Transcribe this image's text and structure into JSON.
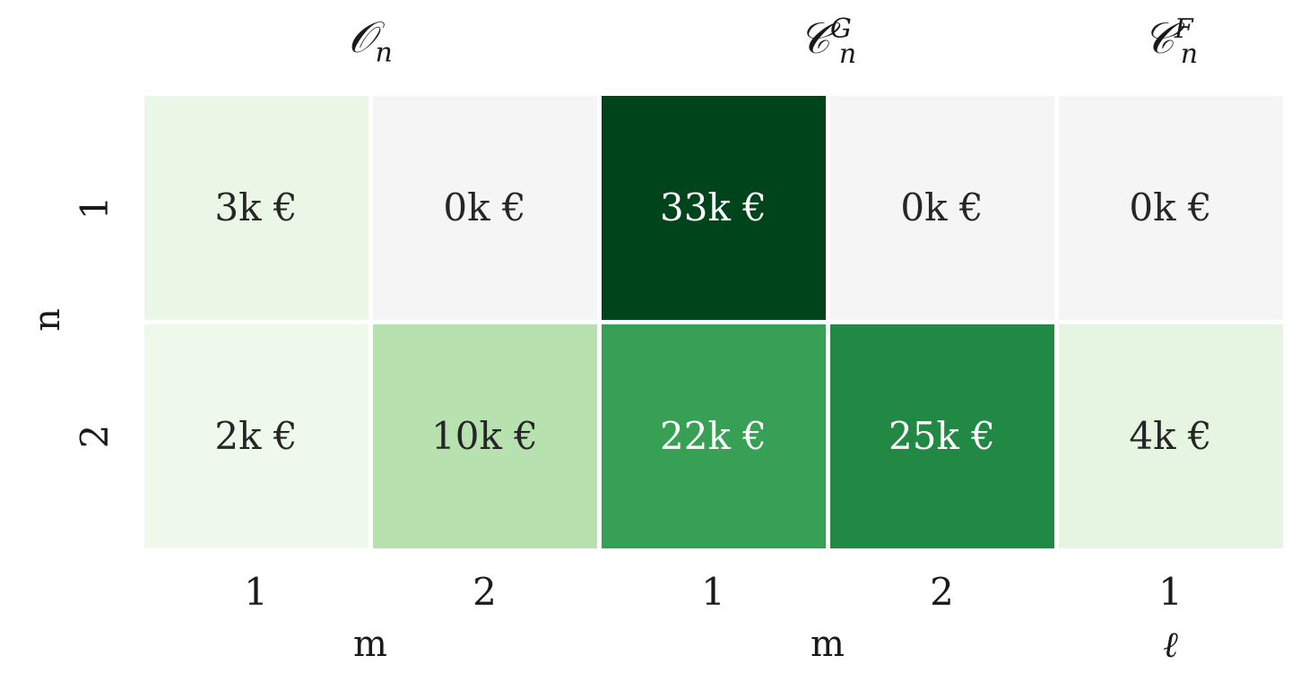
{
  "chart_data": {
    "type": "heatmap",
    "groups": [
      {
        "title_main": "𝒪",
        "title_sub": "n",
        "title_sup": "",
        "xlabel": "m",
        "columns": [
          "1",
          "2"
        ]
      },
      {
        "title_main": "𝒞",
        "title_sub": "n",
        "title_sup": "G",
        "xlabel": "m",
        "columns": [
          "1",
          "2"
        ]
      },
      {
        "title_main": "𝒞",
        "title_sub": "n",
        "title_sup": "F",
        "xlabel": "ℓ",
        "columns": [
          "1"
        ]
      }
    ],
    "ylabel": "n",
    "rows": [
      "1",
      "2"
    ],
    "values": [
      [
        3,
        0,
        33,
        0,
        0
      ],
      [
        2,
        10,
        22,
        25,
        4
      ]
    ],
    "labels": [
      [
        "3k €",
        "0k €",
        "33k €",
        "0k €",
        "0k €"
      ],
      [
        "2k €",
        "10k €",
        "22k €",
        "25k €",
        "4k €"
      ]
    ],
    "colormap": "Greens",
    "vmin": 0,
    "vmax": 33,
    "colors": {
      "low": "#f7fcf5",
      "high": "#00441b",
      "zero": "#f5f5f5"
    }
  }
}
